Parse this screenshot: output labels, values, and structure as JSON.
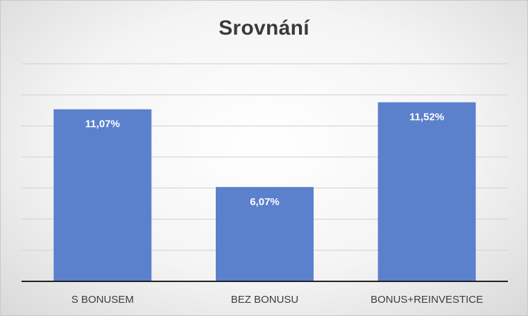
{
  "chart_data": {
    "type": "bar",
    "title": "Srovnání",
    "categories": [
      "S BONUSEM",
      "BEZ BONUSU",
      "BONUS+REINVESTICE"
    ],
    "values": [
      11.07,
      6.07,
      11.52
    ],
    "data_labels": [
      "11,07%",
      "6,07%",
      "11,52%"
    ],
    "ylim": [
      0,
      14
    ],
    "ytick_step": 2,
    "y_tick_labels_visible": false,
    "grid": true,
    "legend": "none",
    "bar_color": "#5b80cc"
  }
}
